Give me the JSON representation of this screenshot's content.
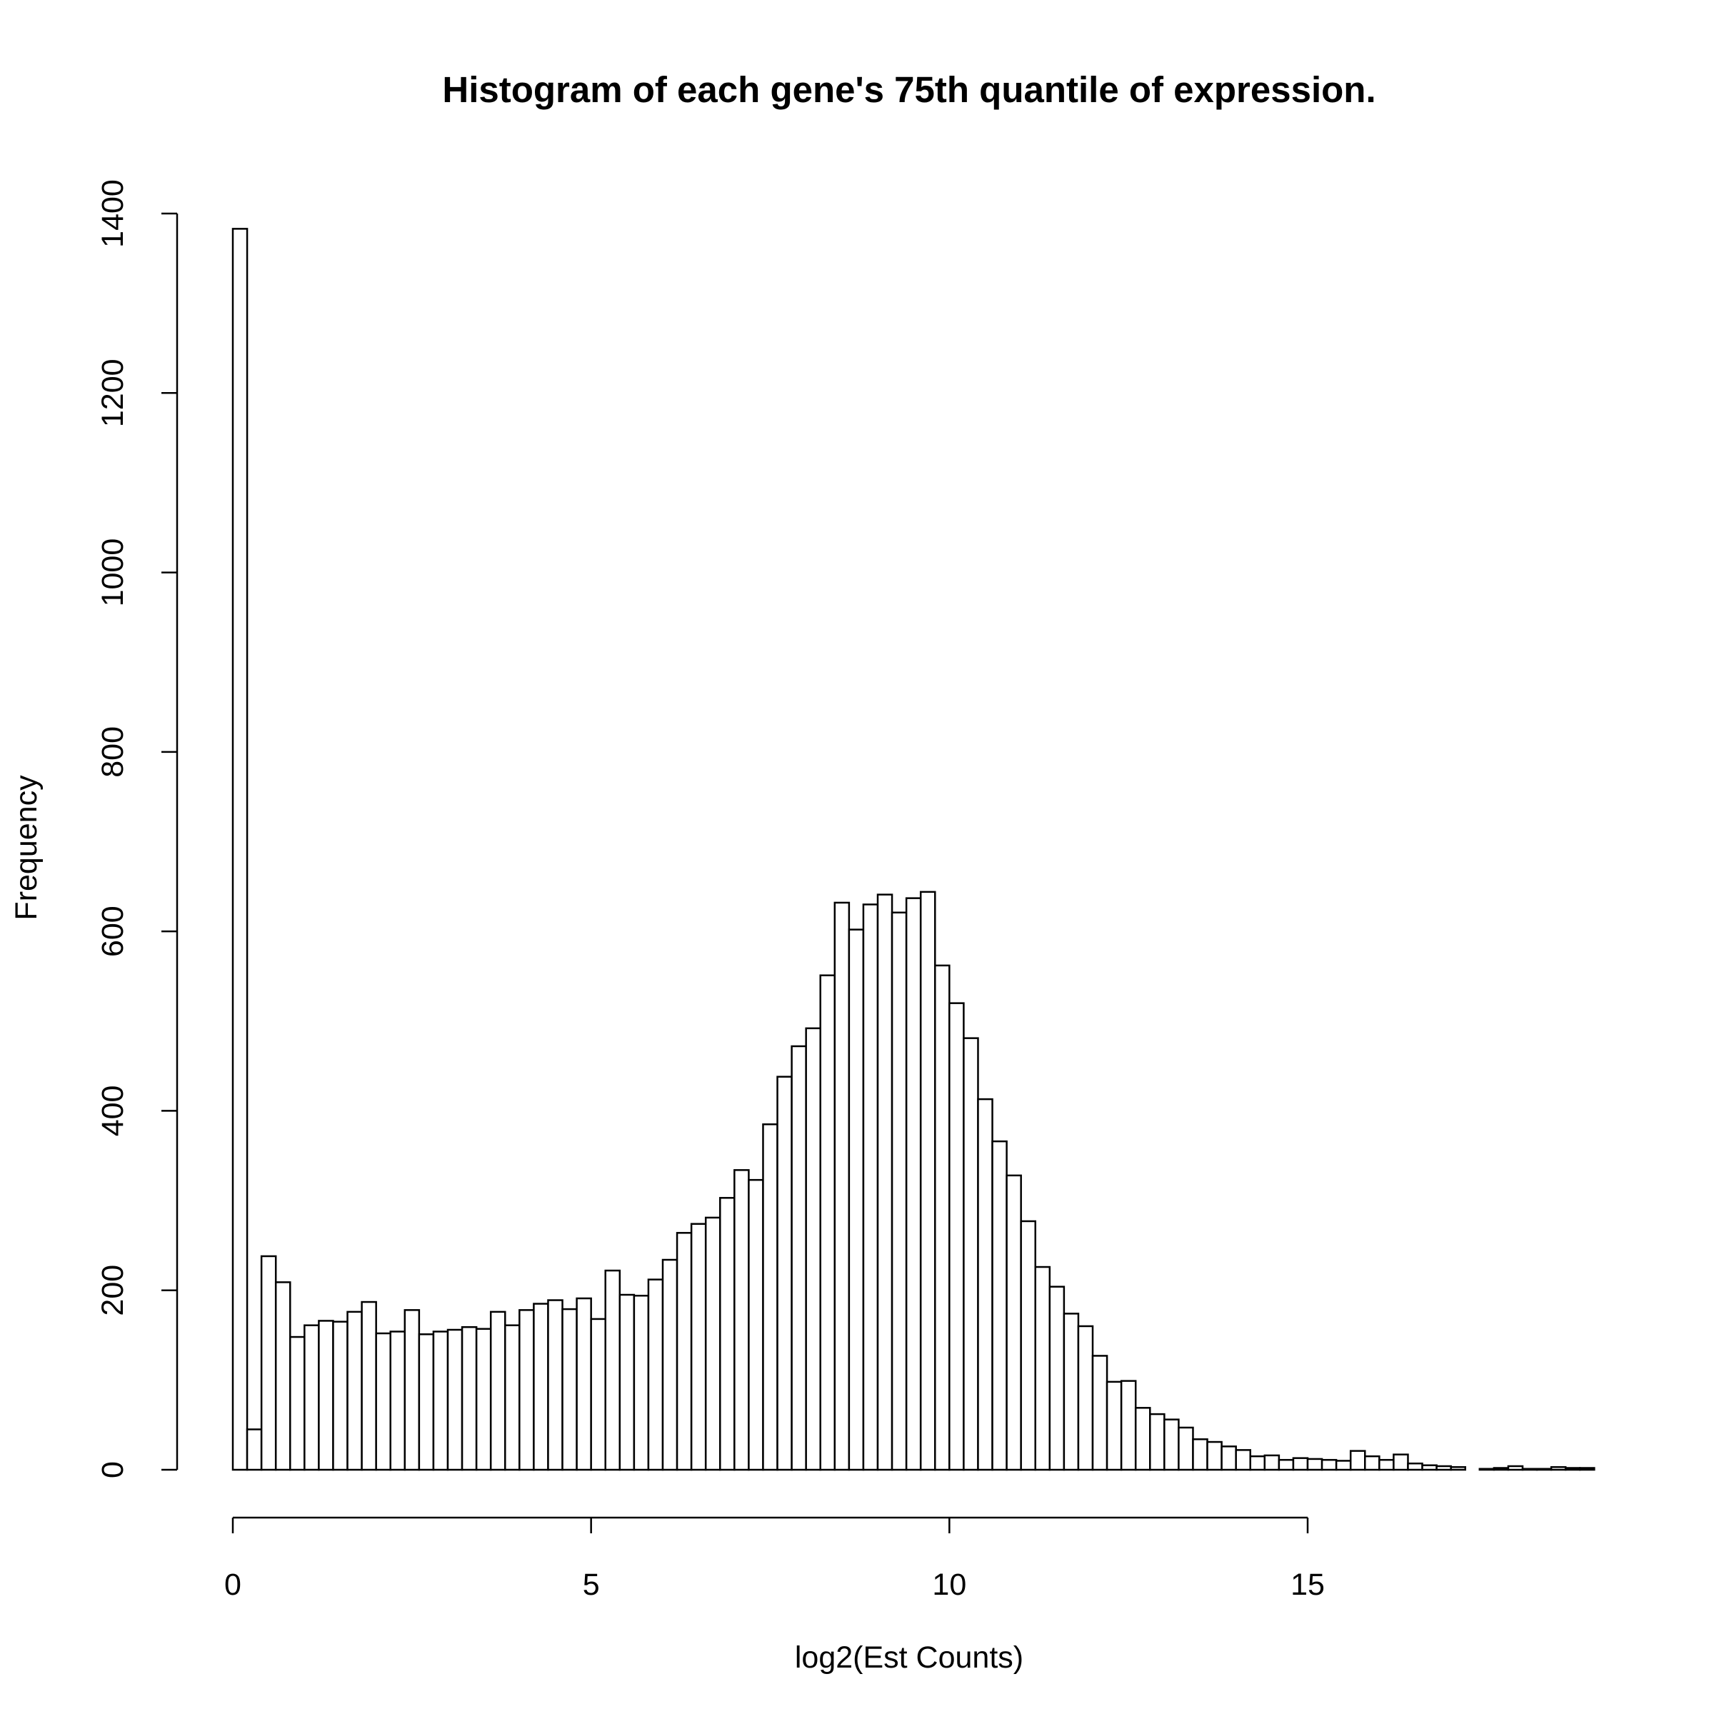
{
  "chart_data": {
    "type": "bar",
    "title": "Histogram of each gene's 75th quantile of expression.",
    "xlabel": "log2(Est Counts)",
    "ylabel": "Frequency",
    "bin_width": 0.2,
    "bin_start": 0,
    "xlim": [
      0,
      19
    ],
    "ylim": [
      0,
      1400
    ],
    "x_ticks": [
      0,
      5,
      10,
      15
    ],
    "y_ticks": [
      0,
      200,
      400,
      600,
      800,
      1000,
      1200,
      1400
    ],
    "grid": false,
    "values": [
      1383,
      45,
      238,
      209,
      148,
      161,
      166,
      165,
      176,
      187,
      152,
      154,
      178,
      151,
      154,
      156,
      159,
      157,
      176,
      161,
      178,
      185,
      189,
      179,
      191,
      168,
      222,
      195,
      194,
      212,
      234,
      264,
      274,
      281,
      303,
      334,
      323,
      385,
      438,
      472,
      492,
      551,
      632,
      602,
      630,
      641,
      621,
      637,
      644,
      562,
      520,
      481,
      413,
      366,
      328,
      277,
      226,
      204,
      174,
      160,
      127,
      98,
      99,
      69,
      62,
      56,
      47,
      34,
      31,
      26,
      22,
      15,
      16,
      11,
      13,
      12,
      11,
      10,
      21,
      15,
      11,
      17,
      7,
      5,
      4,
      3,
      0,
      1,
      2,
      4,
      1,
      1,
      3,
      2,
      2
    ]
  }
}
